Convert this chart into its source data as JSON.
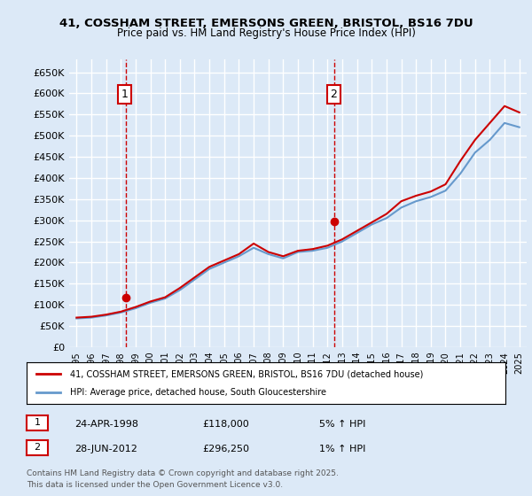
{
  "title": "41, COSSHAM STREET, EMERSONS GREEN, BRISTOL, BS16 7DU",
  "subtitle": "Price paid vs. HM Land Registry's House Price Index (HPI)",
  "xlabel": "",
  "ylabel": "",
  "ylim": [
    0,
    680000
  ],
  "yticks": [
    0,
    50000,
    100000,
    150000,
    200000,
    250000,
    300000,
    350000,
    400000,
    450000,
    500000,
    550000,
    600000,
    650000
  ],
  "ytick_labels": [
    "£0",
    "£50K",
    "£100K",
    "£150K",
    "£200K",
    "£250K",
    "£300K",
    "£350K",
    "£400K",
    "£450K",
    "£500K",
    "£550K",
    "£600K",
    "£650K"
  ],
  "background_color": "#dce9f7",
  "plot_bg_color": "#dce9f7",
  "grid_color": "#ffffff",
  "sale1_date": 1998.32,
  "sale1_price": 118000,
  "sale2_date": 2012.49,
  "sale2_price": 296250,
  "legend_label1": "41, COSSHAM STREET, EMERSONS GREEN, BRISTOL, BS16 7DU (detached house)",
  "legend_label2": "HPI: Average price, detached house, South Gloucestershire",
  "annotation1_label": "1",
  "annotation2_label": "2",
  "footer1": "Contains HM Land Registry data © Crown copyright and database right 2025.",
  "footer2": "This data is licensed under the Open Government Licence v3.0.",
  "table_row1": [
    "1",
    "24-APR-1998",
    "£118,000",
    "5% ↑ HPI"
  ],
  "table_row2": [
    "2",
    "28-JUN-2012",
    "£296,250",
    "1% ↑ HPI"
  ],
  "line_color_price": "#cc0000",
  "line_color_hpi": "#6699cc",
  "dashed_color": "#cc0000",
  "hpi_data_years": [
    1995,
    1996,
    1997,
    1998,
    1999,
    2000,
    2001,
    2002,
    2003,
    2004,
    2005,
    2006,
    2007,
    2008,
    2009,
    2010,
    2011,
    2012,
    2013,
    2014,
    2015,
    2016,
    2017,
    2018,
    2019,
    2020,
    2021,
    2022,
    2023,
    2024,
    2025
  ],
  "hpi_values": [
    68000,
    70000,
    75000,
    82000,
    92000,
    105000,
    115000,
    135000,
    160000,
    185000,
    200000,
    215000,
    235000,
    220000,
    210000,
    225000,
    228000,
    235000,
    250000,
    270000,
    290000,
    305000,
    330000,
    345000,
    355000,
    370000,
    410000,
    460000,
    490000,
    530000,
    520000
  ],
  "price_line_years": [
    1995,
    1996,
    1997,
    1998,
    1999,
    2000,
    2001,
    2002,
    2003,
    2004,
    2005,
    2006,
    2007,
    2008,
    2009,
    2010,
    2011,
    2012,
    2013,
    2014,
    2015,
    2016,
    2017,
    2018,
    2019,
    2020,
    2021,
    2022,
    2023,
    2024,
    2025
  ],
  "price_line_values": [
    70000,
    72000,
    77000,
    84000,
    95000,
    108000,
    118000,
    140000,
    165000,
    190000,
    205000,
    220000,
    245000,
    225000,
    215000,
    228000,
    232000,
    240000,
    255000,
    275000,
    295000,
    315000,
    345000,
    358000,
    368000,
    385000,
    440000,
    490000,
    530000,
    570000,
    555000
  ]
}
